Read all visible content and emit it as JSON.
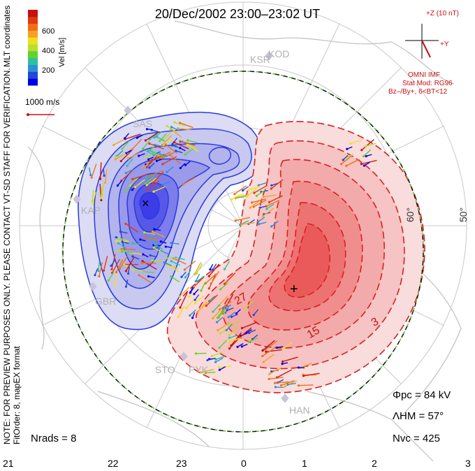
{
  "title": "20/Dec/2002 23:00–23:02 UT",
  "coords_label": "MLT coordinates",
  "colorbar": {
    "label": "Vel [m/s]",
    "ticks": [
      "600",
      "400",
      "200"
    ],
    "colors": [
      "#0000e8",
      "#1f49d8",
      "#2f8fd6",
      "#2fbfa0",
      "#5fd32f",
      "#b8e02a",
      "#f0e020",
      "#f5a21e",
      "#f06f16",
      "#e03a10",
      "#c81010"
    ]
  },
  "ref_vector": "1000 m/s",
  "imf": {
    "bz_label": "+Z (10 nT)",
    "by_label": "+Y",
    "source": "OMNI IMF",
    "model": "Stat Mod: RG96",
    "model_params": "Bz–/By+, 6<BT<12"
  },
  "warning": "NOTE: FOR PREVIEW PURPOSES ONLY. PLEASE CONTACT VT-SD STAFF FOR VERIFICATION.",
  "fit_info": "FitOrder: 8, mapEX format",
  "stations": [
    "KSR",
    "KOD",
    "SAS",
    "KAP",
    "GBR",
    "STO",
    "PYK",
    "HAN"
  ],
  "lat_labels": [
    "60°",
    "50°"
  ],
  "contour_labels": [
    "27",
    "15",
    "3"
  ],
  "stats": {
    "phi_pc": "Φpc = 84 kV",
    "lambda_hm": "ΛHM = 57°",
    "n_vc": "Nvc = 425",
    "n_rads": "Nrads = 8"
  },
  "mlt_ticks": [
    "21",
    "22",
    "23",
    "0",
    "1",
    "2",
    "3"
  ],
  "colors": {
    "positive": "#e83a3a",
    "negative": "#3a4ae8",
    "heppner": "#66cc33"
  }
}
